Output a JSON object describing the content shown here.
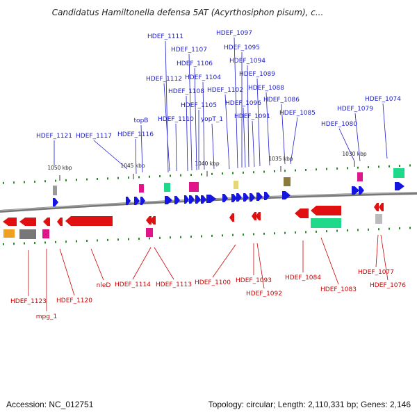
{
  "title": "Candidatus Hamiltonella defensa 5AT (Acyrthosiphon pisum), c...",
  "footer": {
    "accession": "Accession: NC_012751",
    "summary": "Topology: circular; Length: 2,110,331 bp; Genes: 2,146"
  },
  "colors": {
    "forward_gene": "#1515e0",
    "reverse_gene": "#e01010",
    "blue_label": "#1a1acd",
    "red_label": "#cc0000",
    "backbone": "#7a7a7a",
    "tick": "#2a8a2a"
  },
  "scale_labels": [
    "1050 kbp",
    "1045 kbp",
    "1040 kbp",
    "1035 kbp",
    "1030 kbp"
  ],
  "forward_labels": [
    "HDEF_1121",
    "HDEF_1117",
    "HDEF_1116",
    "topB",
    "HDEF_1112",
    "HDEF_1111",
    "HDEF_1110",
    "HDEF_1108",
    "HDEF_1107",
    "HDEF_1106",
    "HDEF_1105",
    "HDEF_1104",
    "yopT_1",
    "HDEF_1102",
    "HDEF_1097",
    "HDEF_1096",
    "HDEF_1095",
    "HDEF_1094",
    "HDEF_1091",
    "HDEF_1089",
    "HDEF_1088",
    "HDEF_1086",
    "HDEF_1085",
    "HDEF_1080",
    "HDEF_1079",
    "HDEF_1074"
  ],
  "reverse_labels": [
    "HDEF_1123",
    "mpg_1",
    "HDEF_1120",
    "nleD",
    "HDEF_1114",
    "HDEF_1113",
    "HDEF_1100",
    "HDEF_1093",
    "HDEF_1092",
    "HDEF_1084",
    "HDEF_1083",
    "HDEF_1077",
    "HDEF_1076"
  ]
}
